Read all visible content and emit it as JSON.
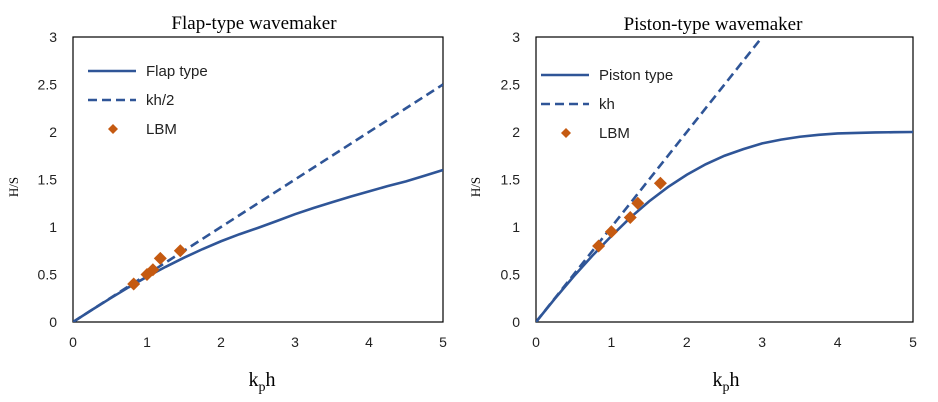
{
  "colors": {
    "series_line": "#2F5597",
    "marker": "#C55A11",
    "frame": "#000000"
  },
  "chart_data": [
    {
      "type": "line",
      "title": "Flap-type wavemaker",
      "xlabel_main": "k",
      "xlabel_sub": "p",
      "xlabel_tail": "h",
      "ylabel": "H/S",
      "xlim": [
        0,
        5
      ],
      "ylim": [
        0,
        3
      ],
      "xticks": [
        "0",
        "1",
        "2",
        "3",
        "4",
        "5"
      ],
      "yticks": [
        "0",
        "0.5",
        "1",
        "1.5",
        "2",
        "2.5",
        "3"
      ],
      "grid": false,
      "legend_position": "top-left",
      "series": [
        {
          "name": "Flap type",
          "style": "solid",
          "x": [
            0,
            0.25,
            0.5,
            0.75,
            1.0,
            1.25,
            1.5,
            1.75,
            2.0,
            2.25,
            2.5,
            2.75,
            3.0,
            3.25,
            3.5,
            3.75,
            4.0,
            4.25,
            4.5,
            4.75,
            5.0
          ],
          "y": [
            0,
            0.125,
            0.247,
            0.365,
            0.477,
            0.58,
            0.677,
            0.767,
            0.85,
            0.924,
            0.991,
            1.062,
            1.135,
            1.2,
            1.26,
            1.32,
            1.375,
            1.43,
            1.48,
            1.54,
            1.6
          ]
        },
        {
          "name": "kh/2",
          "style": "dashed",
          "x": [
            0,
            5
          ],
          "y": [
            0,
            2.5
          ]
        },
        {
          "name": "LBM",
          "style": "marker",
          "x": [
            0.82,
            1.0,
            1.08,
            1.18,
            1.45
          ],
          "y": [
            0.4,
            0.5,
            0.55,
            0.67,
            0.75
          ]
        }
      ]
    },
    {
      "type": "line",
      "title": "Piston-type wavemaker",
      "xlabel_main": "k",
      "xlabel_sub": "p",
      "xlabel_tail": "h",
      "ylabel": "H/S",
      "xlim": [
        0,
        5
      ],
      "ylim": [
        0,
        3
      ],
      "xticks": [
        "0",
        "1",
        "2",
        "3",
        "4",
        "5"
      ],
      "yticks": [
        "0",
        "0.5",
        "1",
        "1.5",
        "2",
        "2.5",
        "3"
      ],
      "grid": false,
      "legend_position": "top-left",
      "series": [
        {
          "name": "Piston type",
          "style": "solid",
          "x": [
            0,
            0.25,
            0.5,
            0.75,
            1.0,
            1.25,
            1.5,
            1.75,
            2.0,
            2.25,
            2.5,
            2.75,
            3.0,
            3.25,
            3.5,
            3.75,
            4.0,
            4.25,
            4.5,
            4.75,
            5.0
          ],
          "y": [
            0,
            0.245,
            0.48,
            0.7,
            0.905,
            1.098,
            1.27,
            1.42,
            1.55,
            1.66,
            1.75,
            1.82,
            1.88,
            1.92,
            1.95,
            1.97,
            1.985,
            1.99,
            1.995,
            1.998,
            2.0
          ]
        },
        {
          "name": "kh",
          "style": "dashed",
          "x": [
            0,
            3.0
          ],
          "y": [
            0,
            3.0
          ]
        },
        {
          "name": "LBM",
          "style": "marker",
          "x": [
            0.83,
            1.0,
            1.25,
            1.35,
            1.65
          ],
          "y": [
            0.8,
            0.95,
            1.1,
            1.25,
            1.46
          ]
        }
      ]
    }
  ]
}
